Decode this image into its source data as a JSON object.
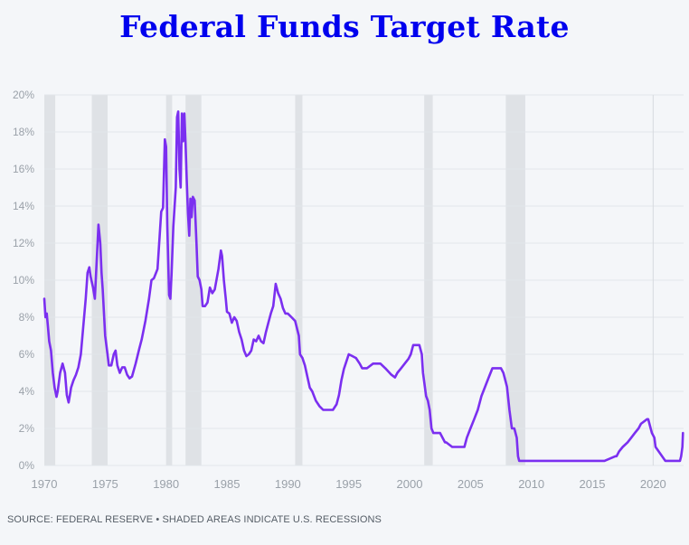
{
  "chart_data": {
    "type": "line",
    "title": "Federal Funds Target Rate",
    "xlabel": "",
    "ylabel": "",
    "xlim": [
      1970,
      2022.5
    ],
    "ylim": [
      0,
      20
    ],
    "x_ticks": [
      1970,
      1975,
      1980,
      1985,
      1990,
      1995,
      2000,
      2005,
      2010,
      2015,
      2020
    ],
    "x_tick_labels": [
      "1970",
      "1975",
      "1980",
      "1985",
      "1990",
      "1995",
      "2000",
      "2005",
      "2010",
      "2015",
      "2020"
    ],
    "y_ticks": [
      0,
      2,
      4,
      6,
      8,
      10,
      12,
      14,
      16,
      18,
      20
    ],
    "y_tick_labels": [
      "0%",
      "2%",
      "4%",
      "6%",
      "8%",
      "10%",
      "12%",
      "14%",
      "16%",
      "18%",
      "20%"
    ],
    "grid": true,
    "line_color": "#7b2ff0",
    "recession_color": "#dfe2e6",
    "recessions": [
      [
        1970.0,
        1970.9
      ],
      [
        1973.9,
        1975.2
      ],
      [
        1980.0,
        1980.5
      ],
      [
        1981.6,
        1982.9
      ],
      [
        1990.6,
        1991.2
      ],
      [
        2001.2,
        2001.9
      ],
      [
        2007.9,
        2009.5
      ]
    ],
    "series": [
      {
        "x": [
          1970.0,
          1970.1,
          1970.2,
          1970.3,
          1970.4,
          1970.55,
          1970.7,
          1970.85,
          1971.0,
          1971.1,
          1971.3,
          1971.5,
          1971.7,
          1971.85,
          1972.0,
          1972.1,
          1972.2,
          1972.4,
          1972.6,
          1972.8,
          1973.0,
          1973.2,
          1973.4,
          1973.55,
          1973.7,
          1973.8,
          1974.0,
          1974.15,
          1974.3,
          1974.45,
          1974.6,
          1974.7,
          1974.8,
          1974.9,
          1975.0,
          1975.15,
          1975.3,
          1975.5,
          1975.7,
          1975.85,
          1976.0,
          1976.2,
          1976.4,
          1976.6,
          1976.8,
          1977.0,
          1977.2,
          1977.5,
          1977.8,
          1978.0,
          1978.3,
          1978.6,
          1978.8,
          1979.0,
          1979.3,
          1979.6,
          1979.75,
          1979.9,
          1980.0,
          1980.1,
          1980.25,
          1980.35,
          1980.45,
          1980.6,
          1980.8,
          1980.9,
          1981.0,
          1981.1,
          1981.2,
          1981.3,
          1981.4,
          1981.5,
          1981.6,
          1981.7,
          1981.8,
          1981.9,
          1982.0,
          1982.1,
          1982.2,
          1982.35,
          1982.5,
          1982.6,
          1982.75,
          1982.9,
          1983.0,
          1983.2,
          1983.4,
          1983.6,
          1983.8,
          1984.0,
          1984.3,
          1984.5,
          1984.6,
          1984.75,
          1984.9,
          1985.0,
          1985.2,
          1985.4,
          1985.6,
          1985.8,
          1986.0,
          1986.2,
          1986.4,
          1986.6,
          1986.8,
          1987.0,
          1987.2,
          1987.4,
          1987.6,
          1987.8,
          1988.0,
          1988.2,
          1988.4,
          1988.6,
          1988.8,
          1989.0,
          1989.2,
          1989.4,
          1989.6,
          1989.8,
          1990.0,
          1990.3,
          1990.6,
          1990.9,
          1991.0,
          1991.2,
          1991.4,
          1991.6,
          1991.8,
          1992.0,
          1992.3,
          1992.6,
          1992.9,
          1993.3,
          1993.7,
          1994.0,
          1994.2,
          1994.4,
          1994.6,
          1994.8,
          1995.0,
          1995.3,
          1995.6,
          1995.9,
          1996.1,
          1996.5,
          1997.0,
          1997.3,
          1997.6,
          1998.0,
          1998.5,
          1998.8,
          1999.0,
          1999.3,
          1999.6,
          1999.9,
          2000.1,
          2000.3,
          2000.5,
          2000.8,
          2001.0,
          2001.1,
          2001.2,
          2001.35,
          2001.5,
          2001.65,
          2001.8,
          2001.95,
          2002.5,
          2002.9,
          2003.0,
          2003.5,
          2004.0,
          2004.5,
          2004.7,
          2005.0,
          2005.3,
          2005.6,
          2005.9,
          2006.2,
          2006.5,
          2006.8,
          2007.0,
          2007.5,
          2007.7,
          2007.9,
          2008.0,
          2008.2,
          2008.4,
          2008.6,
          2008.8,
          2008.9,
          2009.0,
          2010.0,
          2012.0,
          2014.0,
          2015.9,
          2016.0,
          2016.9,
          2017.0,
          2017.2,
          2017.5,
          2017.9,
          2018.2,
          2018.5,
          2018.8,
          2019.0,
          2019.5,
          2019.6,
          2019.8,
          2019.9,
          2020.1,
          2020.2,
          2021.0,
          2022.0,
          2022.2,
          2022.3,
          2022.4,
          2022.45
        ],
        "y": [
          9.0,
          8.0,
          8.2,
          7.5,
          6.7,
          6.2,
          5.0,
          4.2,
          3.7,
          4.0,
          5.0,
          5.5,
          5.0,
          3.8,
          3.4,
          3.8,
          4.2,
          4.6,
          4.9,
          5.3,
          6.0,
          7.5,
          9.0,
          10.4,
          10.7,
          10.2,
          9.6,
          9.0,
          11.0,
          13.0,
          12.0,
          10.4,
          9.5,
          8.2,
          7.0,
          6.2,
          5.4,
          5.4,
          6.0,
          6.2,
          5.4,
          5.0,
          5.3,
          5.3,
          4.9,
          4.7,
          4.8,
          5.5,
          6.3,
          6.8,
          7.8,
          9.0,
          10.0,
          10.1,
          10.6,
          13.7,
          13.9,
          17.6,
          17.2,
          13.0,
          9.2,
          9.0,
          10.3,
          12.9,
          15.0,
          18.8,
          19.1,
          16.0,
          15.0,
          19.0,
          17.5,
          19.0,
          17.4,
          15.3,
          13.6,
          12.4,
          14.4,
          13.4,
          14.5,
          14.3,
          12.0,
          10.2,
          10.0,
          9.5,
          8.6,
          8.6,
          8.8,
          9.6,
          9.3,
          9.5,
          10.6,
          11.6,
          11.3,
          10.0,
          9.0,
          8.3,
          8.2,
          7.7,
          8.0,
          7.8,
          7.2,
          6.8,
          6.2,
          5.9,
          6.0,
          6.2,
          6.8,
          6.7,
          7.0,
          6.7,
          6.6,
          7.2,
          7.7,
          8.2,
          8.6,
          9.8,
          9.3,
          9.0,
          8.5,
          8.2,
          8.2,
          8.0,
          7.8,
          7.0,
          6.0,
          5.8,
          5.4,
          4.8,
          4.2,
          4.0,
          3.5,
          3.2,
          3.0,
          3.0,
          3.0,
          3.3,
          3.8,
          4.6,
          5.2,
          5.6,
          6.0,
          5.9,
          5.8,
          5.5,
          5.25,
          5.25,
          5.5,
          5.5,
          5.5,
          5.25,
          4.9,
          4.75,
          5.0,
          5.25,
          5.5,
          5.75,
          6.0,
          6.5,
          6.5,
          6.5,
          6.0,
          5.0,
          4.5,
          3.75,
          3.5,
          3.0,
          2.0,
          1.75,
          1.75,
          1.25,
          1.25,
          1.0,
          1.0,
          1.0,
          1.5,
          2.0,
          2.5,
          3.0,
          3.75,
          4.25,
          4.75,
          5.25,
          5.25,
          5.25,
          5.0,
          4.5,
          4.25,
          3.0,
          2.0,
          2.0,
          1.5,
          0.5,
          0.25,
          0.25,
          0.25,
          0.25,
          0.25,
          0.25,
          0.5,
          0.5,
          0.75,
          1.0,
          1.25,
          1.5,
          1.75,
          2.0,
          2.25,
          2.5,
          2.5,
          2.0,
          1.75,
          1.5,
          1.0,
          0.25,
          0.25,
          0.25,
          0.5,
          1.0,
          1.75
        ]
      }
    ]
  },
  "source_text": "SOURCE: FEDERAL RESERVE • SHADED AREAS INDICATE U.S. RECESSIONS"
}
